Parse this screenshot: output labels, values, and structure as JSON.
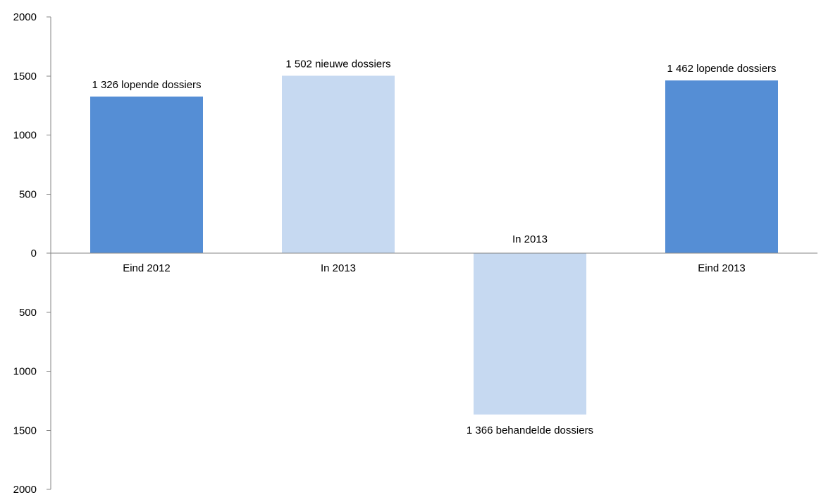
{
  "chart_data": {
    "type": "bar",
    "categories": [
      "Eind 2012",
      "In 2013",
      "In 2013",
      "Eind 2013"
    ],
    "values": [
      1326,
      1502,
      -1366,
      1462
    ],
    "data_labels": [
      "1 326 lopende dossiers",
      "1 502 nieuwe dossiers",
      "1 366 behandelde dossiers",
      "1 462 lopende dossiers"
    ],
    "bar_colors": [
      "#558ed5",
      "#c6d9f1",
      "#c6d9f1",
      "#558ed5"
    ],
    "yticks": [
      2000,
      1500,
      1000,
      500,
      0,
      -500,
      -1000,
      -1500,
      -2000
    ],
    "ytick_labels": [
      "2000",
      "1500",
      "1000",
      "500",
      "0",
      "500",
      "1000",
      "1500",
      "2000"
    ],
    "ylim": [
      -2000,
      2000
    ],
    "title": "",
    "xlabel": "",
    "ylabel": "",
    "grid": false,
    "legend": "none"
  },
  "colors": {
    "axis": "#868686",
    "dark_bar": "#558ed5",
    "light_bar": "#c6d9f1"
  }
}
